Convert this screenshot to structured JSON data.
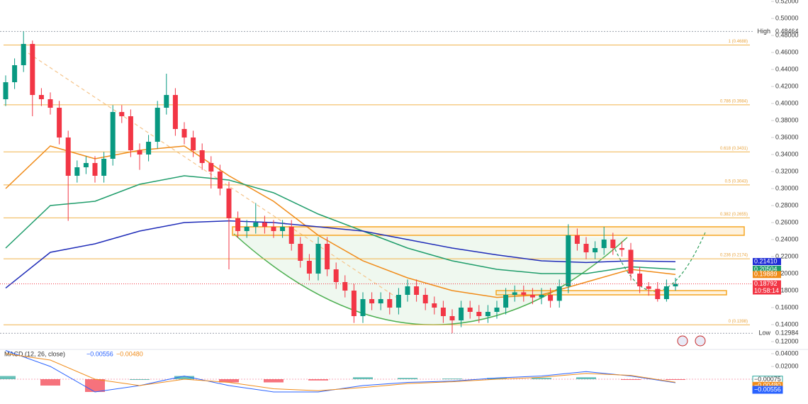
{
  "chart_data": {
    "type": "candlestick",
    "ylim": [
      0.12,
      0.52
    ],
    "yticks": [
      {
        "value": 0.12,
        "label": "0.12000"
      },
      {
        "value": 0.14,
        "label": "0.14000"
      },
      {
        "value": 0.16,
        "label": "0.16000"
      },
      {
        "value": 0.18,
        "label": "0.18000"
      },
      {
        "value": 0.2,
        "label": "0.20000"
      },
      {
        "value": 0.22,
        "label": "0.22000"
      },
      {
        "value": 0.24,
        "label": "0.24000"
      },
      {
        "value": 0.26,
        "label": "0.26000"
      },
      {
        "value": 0.28,
        "label": "0.28000"
      },
      {
        "value": 0.3,
        "label": "0.30000"
      },
      {
        "value": 0.32,
        "label": "0.32000"
      },
      {
        "value": 0.34,
        "label": "0.34000"
      },
      {
        "value": 0.36,
        "label": "0.36000"
      },
      {
        "value": 0.38,
        "label": "0.38000"
      },
      {
        "value": 0.4,
        "label": "0.40000"
      },
      {
        "value": 0.42,
        "label": "0.42000"
      },
      {
        "value": 0.44,
        "label": "0.44000"
      },
      {
        "value": 0.46,
        "label": "0.46000"
      },
      {
        "value": 0.48,
        "label": "0.48000"
      },
      {
        "value": 0.5,
        "label": "0.50000"
      },
      {
        "value": 0.52,
        "label": "0.52000"
      }
    ],
    "up_color": "#089981",
    "down_color": "#f23645",
    "ohlc": [
      [
        0.405,
        0.433,
        0.397,
        0.425
      ],
      [
        0.425,
        0.453,
        0.417,
        0.445
      ],
      [
        0.445,
        0.48464,
        0.437,
        0.47
      ],
      [
        0.47,
        0.474,
        0.385,
        0.41
      ],
      [
        0.41,
        0.418,
        0.397,
        0.405
      ],
      [
        0.405,
        0.413,
        0.387,
        0.395
      ],
      [
        0.395,
        0.403,
        0.352,
        0.36
      ],
      [
        0.36,
        0.368,
        0.262,
        0.315
      ],
      [
        0.315,
        0.333,
        0.307,
        0.325
      ],
      [
        0.325,
        0.338,
        0.317,
        0.33
      ],
      [
        0.33,
        0.338,
        0.307,
        0.315
      ],
      [
        0.315,
        0.343,
        0.307,
        0.335
      ],
      [
        0.335,
        0.398,
        0.327,
        0.39
      ],
      [
        0.39,
        0.398,
        0.377,
        0.385
      ],
      [
        0.385,
        0.393,
        0.337,
        0.345
      ],
      [
        0.345,
        0.353,
        0.322,
        0.34
      ],
      [
        0.34,
        0.363,
        0.332,
        0.355
      ],
      [
        0.355,
        0.403,
        0.347,
        0.395
      ],
      [
        0.395,
        0.435,
        0.387,
        0.41
      ],
      [
        0.41,
        0.418,
        0.362,
        0.37
      ],
      [
        0.37,
        0.378,
        0.352,
        0.36
      ],
      [
        0.36,
        0.368,
        0.337,
        0.345
      ],
      [
        0.345,
        0.353,
        0.322,
        0.33
      ],
      [
        0.33,
        0.338,
        0.3,
        0.32
      ],
      [
        0.32,
        0.328,
        0.292,
        0.3
      ],
      [
        0.3,
        0.308,
        0.205,
        0.265
      ],
      [
        0.265,
        0.273,
        0.242,
        0.25
      ],
      [
        0.25,
        0.263,
        0.242,
        0.255
      ],
      [
        0.255,
        0.283,
        0.247,
        0.26
      ],
      [
        0.26,
        0.268,
        0.247,
        0.255
      ],
      [
        0.255,
        0.263,
        0.242,
        0.25
      ],
      [
        0.25,
        0.263,
        0.242,
        0.255
      ],
      [
        0.255,
        0.263,
        0.227,
        0.235
      ],
      [
        0.235,
        0.243,
        0.207,
        0.215
      ],
      [
        0.215,
        0.223,
        0.192,
        0.2
      ],
      [
        0.2,
        0.243,
        0.192,
        0.235
      ],
      [
        0.235,
        0.243,
        0.197,
        0.205
      ],
      [
        0.205,
        0.213,
        0.182,
        0.19
      ],
      [
        0.19,
        0.198,
        0.172,
        0.18
      ],
      [
        0.18,
        0.188,
        0.142,
        0.15
      ],
      [
        0.15,
        0.178,
        0.142,
        0.17
      ],
      [
        0.17,
        0.178,
        0.157,
        0.165
      ],
      [
        0.165,
        0.178,
        0.157,
        0.17
      ],
      [
        0.17,
        0.178,
        0.152,
        0.16
      ],
      [
        0.16,
        0.183,
        0.152,
        0.175
      ],
      [
        0.175,
        0.193,
        0.167,
        0.185
      ],
      [
        0.185,
        0.193,
        0.167,
        0.175
      ],
      [
        0.175,
        0.183,
        0.157,
        0.165
      ],
      [
        0.165,
        0.173,
        0.152,
        0.16
      ],
      [
        0.16,
        0.168,
        0.142,
        0.15
      ],
      [
        0.15,
        0.158,
        0.12984,
        0.145
      ],
      [
        0.145,
        0.168,
        0.137,
        0.16
      ],
      [
        0.16,
        0.168,
        0.147,
        0.155
      ],
      [
        0.155,
        0.163,
        0.142,
        0.15
      ],
      [
        0.15,
        0.163,
        0.142,
        0.155
      ],
      [
        0.155,
        0.168,
        0.147,
        0.16
      ],
      [
        0.16,
        0.183,
        0.152,
        0.175
      ],
      [
        0.175,
        0.186,
        0.167,
        0.178
      ],
      [
        0.178,
        0.186,
        0.167,
        0.175
      ],
      [
        0.175,
        0.183,
        0.164,
        0.172
      ],
      [
        0.172,
        0.183,
        0.164,
        0.175
      ],
      [
        0.175,
        0.183,
        0.16,
        0.168
      ],
      [
        0.168,
        0.193,
        0.16,
        0.185
      ],
      [
        0.185,
        0.258,
        0.177,
        0.245
      ],
      [
        0.245,
        0.253,
        0.227,
        0.235
      ],
      [
        0.235,
        0.243,
        0.217,
        0.225
      ],
      [
        0.225,
        0.238,
        0.217,
        0.23
      ],
      [
        0.23,
        0.255,
        0.222,
        0.24
      ],
      [
        0.24,
        0.248,
        0.222,
        0.23
      ],
      [
        0.23,
        0.238,
        0.22,
        0.228
      ],
      [
        0.228,
        0.236,
        0.192,
        0.2
      ],
      [
        0.2,
        0.208,
        0.177,
        0.185
      ],
      [
        0.185,
        0.19,
        0.174,
        0.182
      ],
      [
        0.182,
        0.19,
        0.167,
        0.17
      ],
      [
        0.17,
        0.193,
        0.167,
        0.185
      ],
      [
        0.185,
        0.195,
        0.18,
        0.18792
      ]
    ],
    "ma_x": [
      0,
      5,
      10,
      15,
      20,
      25,
      30,
      35,
      40,
      45,
      50,
      55,
      60,
      65,
      70,
      75
    ],
    "moving_averages": [
      {
        "color": "#f08c1a",
        "values": [
          0.3,
          0.35,
          0.335,
          0.345,
          0.35,
          0.315,
          0.285,
          0.245,
          0.215,
          0.195,
          0.18,
          0.172,
          0.175,
          0.19,
          0.205,
          0.199
        ]
      },
      {
        "color": "#1f9d6b",
        "values": [
          0.23,
          0.28,
          0.285,
          0.305,
          0.315,
          0.31,
          0.295,
          0.27,
          0.25,
          0.23,
          0.215,
          0.205,
          0.2,
          0.2,
          0.208,
          0.205
        ]
      },
      {
        "color": "#1e2bb8",
        "values": [
          0.183,
          0.225,
          0.235,
          0.25,
          0.26,
          0.262,
          0.26,
          0.255,
          0.25,
          0.24,
          0.23,
          0.222,
          0.215,
          0.213,
          0.215,
          0.214
        ]
      }
    ],
    "fib": [
      {
        "value": 0.4688,
        "label": "1 (0.4688)"
      },
      {
        "value": 0.3984,
        "label": "0.786 (0.3984)"
      },
      {
        "value": 0.3431,
        "label": "0.618 (0.3431)"
      },
      {
        "value": 0.3043,
        "label": "0.5 (0.3043)"
      },
      {
        "value": 0.2655,
        "label": "0.382 (0.2655)"
      },
      {
        "value": 0.2174,
        "label": "0.236 (0.2174)"
      },
      {
        "value": 0.1398,
        "label": "0 (0.1398)"
      }
    ],
    "zones": [
      {
        "low": 0.245,
        "high": 0.255
      },
      {
        "low": 0.175,
        "high": 0.18
      }
    ],
    "high": {
      "word": "High",
      "value": 0.48464,
      "label": "0.48464"
    },
    "low": {
      "word": "Low",
      "value": 0.12984,
      "label": "0.12984"
    },
    "price_tags": [
      {
        "value": 0.2141,
        "label": "0.21410",
        "color": "#1e2bd6"
      },
      {
        "value": 0.20504,
        "label": "0.20504",
        "color": "#1f9d6b"
      },
      {
        "value": 0.19889,
        "label": "0.19889",
        "color": "#f08c1a"
      },
      {
        "value": 0.18792,
        "label": "0.18792",
        "color": "#f23645"
      }
    ],
    "countdown": "10:58:14",
    "macd": {
      "title": "MACD (12, 26, close)",
      "legend": [
        {
          "label": "−0.00556",
          "color": "#2962ff"
        },
        {
          "label": "−0.00480",
          "color": "#f08c1a"
        }
      ],
      "ylim": [
        -0.025,
        0.05
      ],
      "yticks": [
        {
          "value": 0.04,
          "label": "0.04000"
        },
        {
          "value": 0.02,
          "label": "0.02000"
        }
      ],
      "macd_line": [
        0.045,
        0.02,
        -0.02,
        -0.01,
        0.005,
        -0.01,
        -0.02,
        -0.02,
        -0.01,
        -0.005,
        -0.003,
        0.002,
        0.005,
        0.012,
        0.005,
        -0.00556
      ],
      "signal_line": [
        0.04,
        0.03,
        0,
        -0.01,
        0,
        -0.005,
        -0.015,
        -0.018,
        -0.013,
        -0.007,
        -0.004,
        0,
        0.003,
        0.009,
        0.006,
        -0.0048
      ],
      "histogram": [
        0.005,
        -0.01,
        -0.02,
        0,
        0.005,
        -0.005,
        -0.005,
        -0.002,
        0.003,
        0.002,
        0.001,
        0.002,
        0.002,
        0.003,
        -0.001,
        -0.00075
      ],
      "tags": [
        {
          "value": -0.00075,
          "label": "−0.00075",
          "color": "#26a69a"
        },
        {
          "value": -0.0048,
          "label": "−0.00480",
          "color": "#f08c1a"
        },
        {
          "value": -0.00556,
          "label": "−0.00556",
          "color": "#2962ff"
        }
      ]
    }
  }
}
